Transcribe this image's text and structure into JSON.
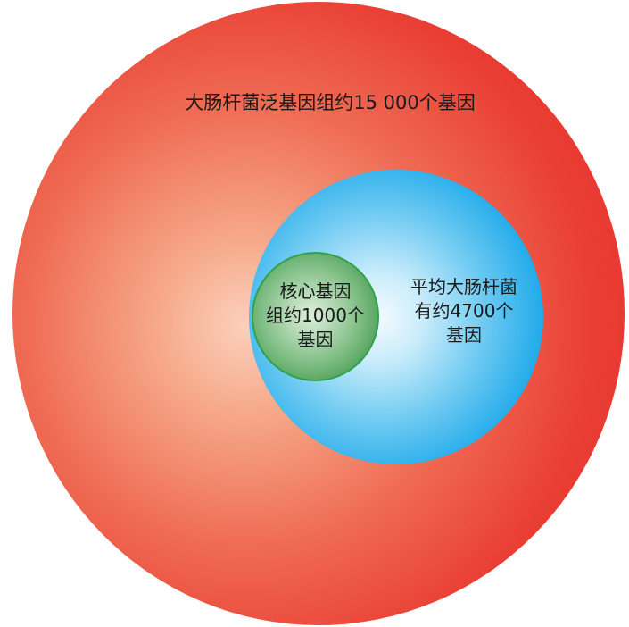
{
  "diagram": {
    "outer_circle": {
      "lines": [
        "大肠杆菌泛基因组约15 000个基因"
      ],
      "color": "#e52a2c"
    },
    "middle_circle": {
      "lines": [
        "平均大肠杆菌",
        "有约4700个",
        "基因"
      ],
      "color": "#0d9fe6"
    },
    "inner_circle": {
      "lines": [
        "核心基因",
        "组约1000个",
        "基因"
      ],
      "color": "#3f9049"
    }
  }
}
